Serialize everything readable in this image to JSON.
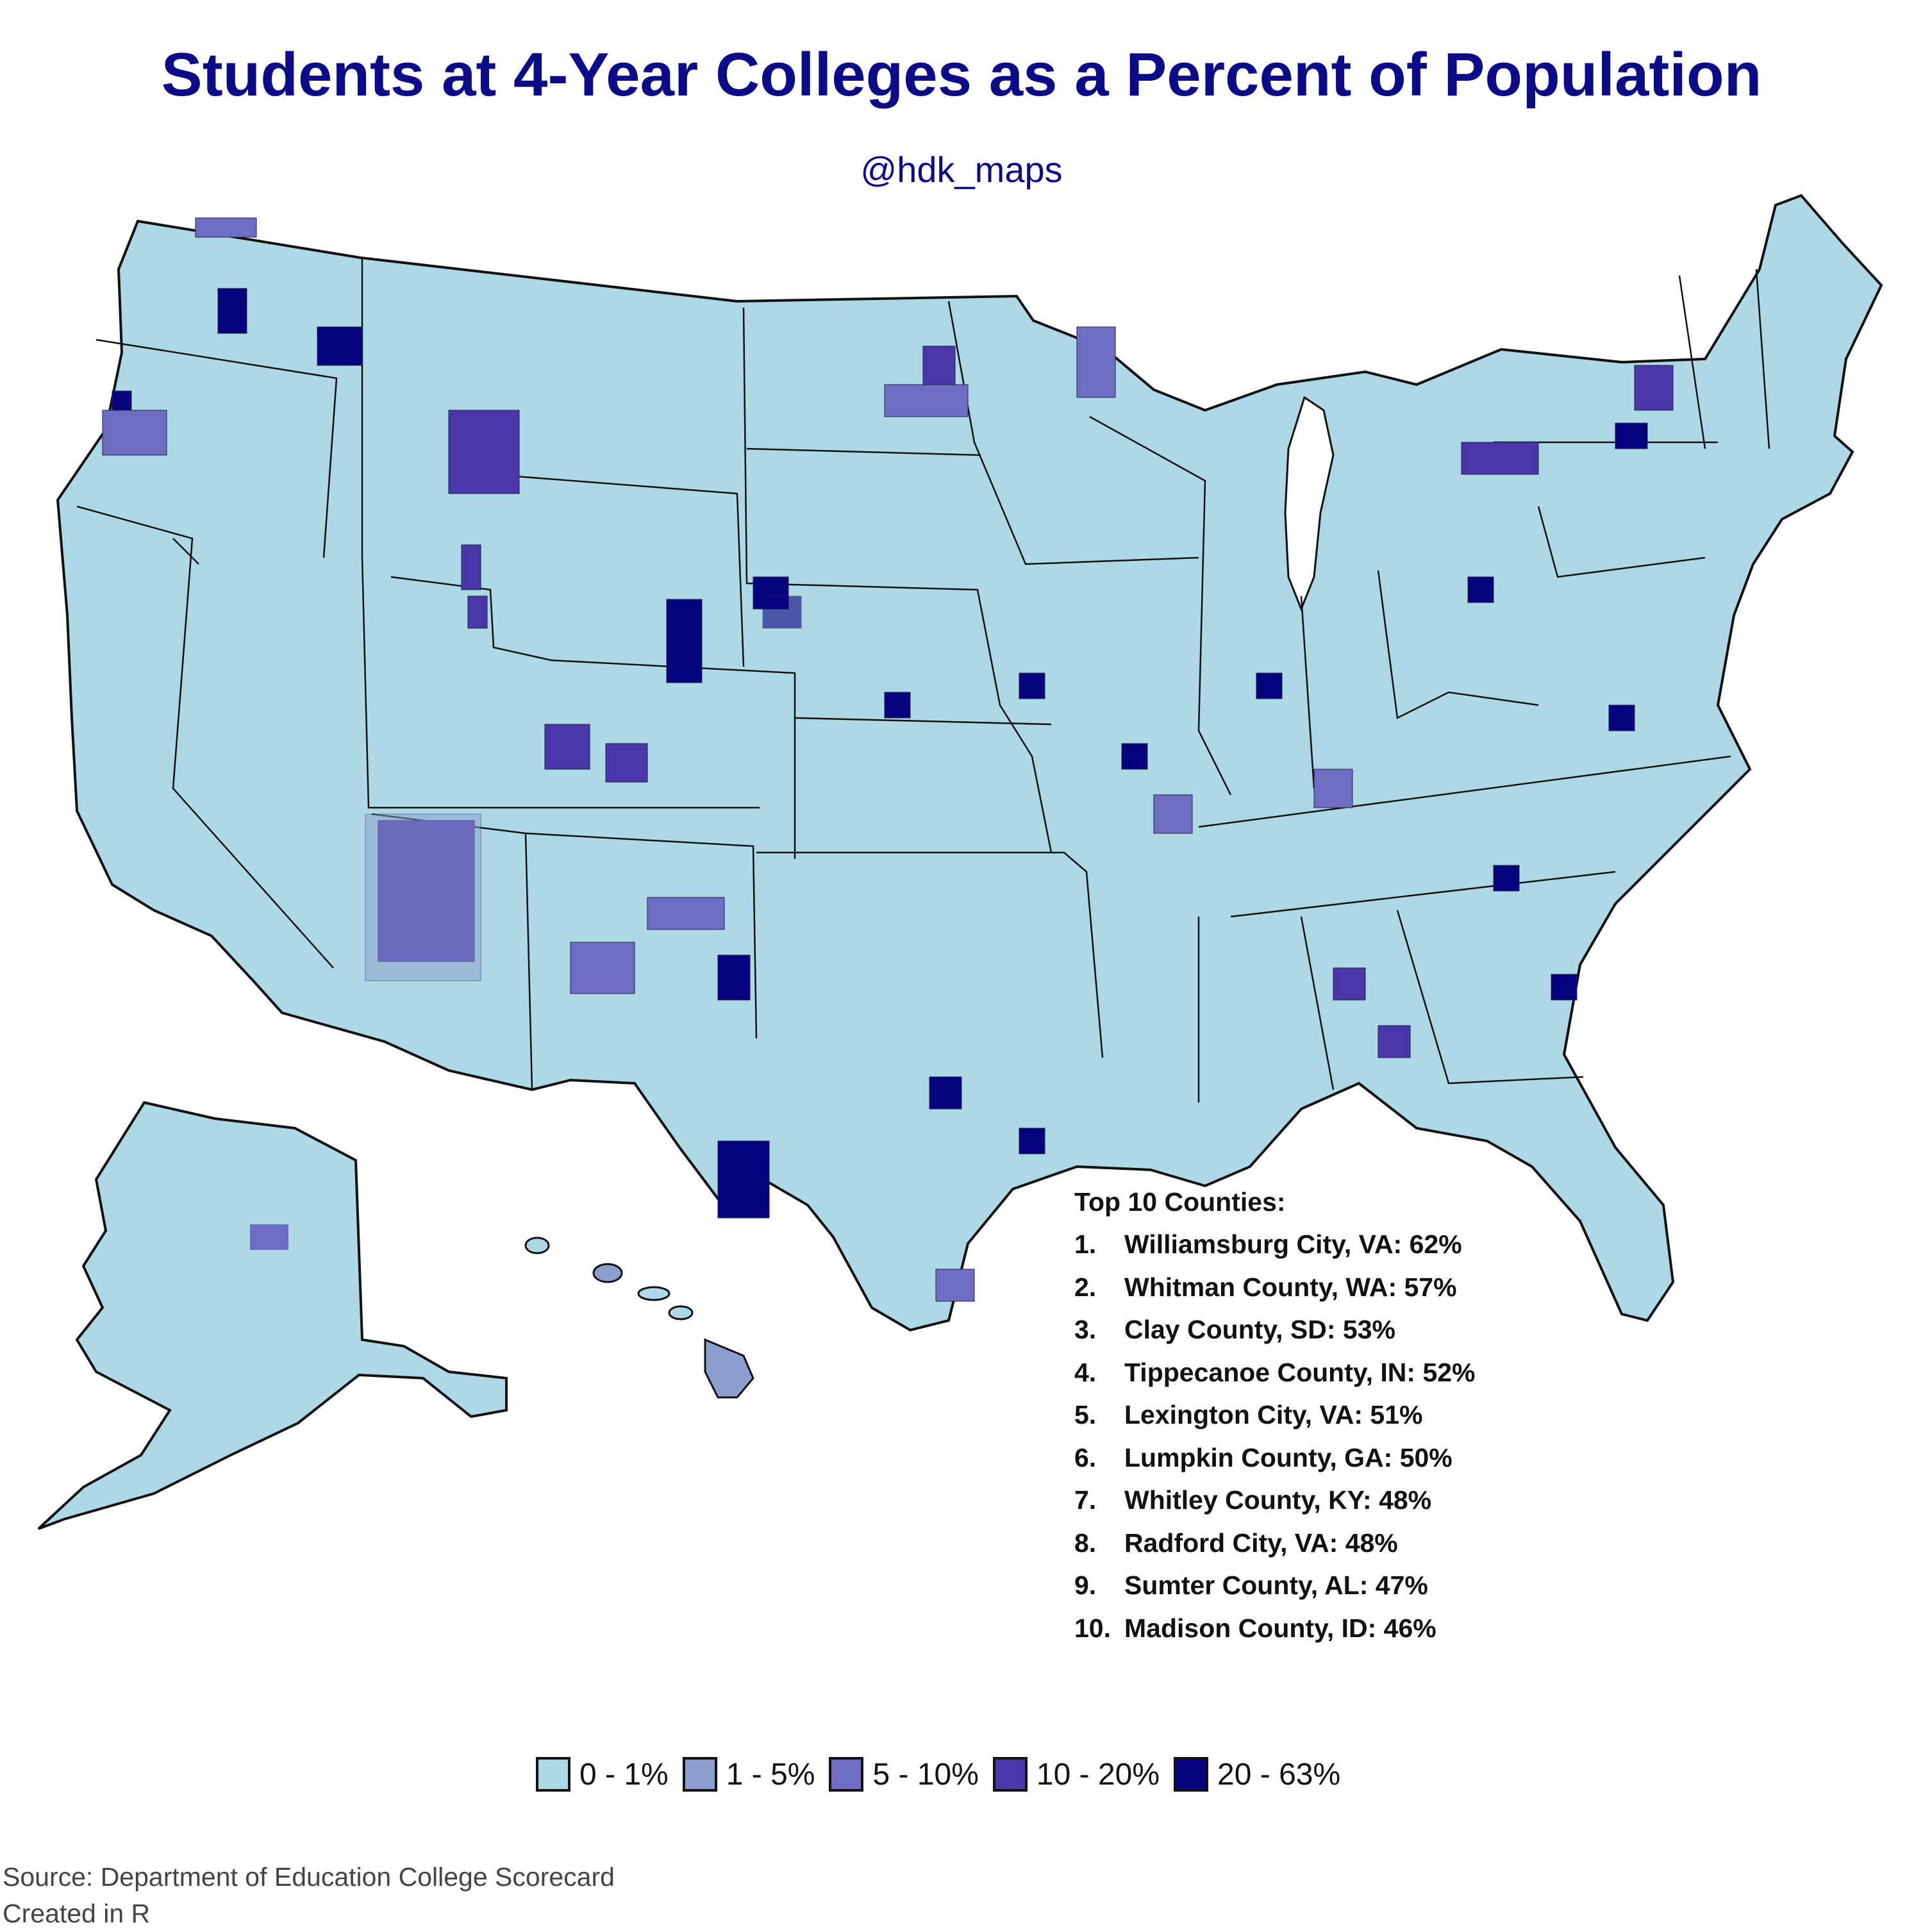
{
  "title": "Students at 4-Year Colleges as a Percent of Population",
  "subtitle": "@hdk_maps",
  "colors": {
    "title": "#0b0a87",
    "water": "#ffffff",
    "border": "#111111",
    "bin_0_1": "#add8e6",
    "bin_1_5": "#8c9ed0",
    "bin_5_10": "#6f6cc3",
    "bin_10_20": "#4b37a8",
    "bin_20_63": "#06027e"
  },
  "top10": {
    "heading": "Top 10 Counties:",
    "items": [
      {
        "rank": "1.",
        "text": "Williamsburg City, VA: 62%"
      },
      {
        "rank": "2.",
        "text": "Whitman County, WA: 57%"
      },
      {
        "rank": "3.",
        "text": "Clay County, SD: 53%"
      },
      {
        "rank": "4.",
        "text": "Tippecanoe County, IN: 52%"
      },
      {
        "rank": "5.",
        "text": "Lexington City, VA: 51%"
      },
      {
        "rank": "6.",
        "text": "Lumpkin County, GA: 50%"
      },
      {
        "rank": "7.",
        "text": "Whitley County, KY: 48%"
      },
      {
        "rank": "8.",
        "text": "Radford City, VA: 48%"
      },
      {
        "rank": "9.",
        "text": "Sumter County, AL: 47%"
      },
      {
        "rank": "10.",
        "text": "Madison County, ID: 46%"
      }
    ]
  },
  "legend": [
    {
      "label": "0 - 1%",
      "color": "#add8e6"
    },
    {
      "label": "1 - 5%",
      "color": "#8c9ed0"
    },
    {
      "label": "5 - 10%",
      "color": "#6f6cc3"
    },
    {
      "label": "10 - 20%",
      "color": "#4b37a8"
    },
    {
      "label": "20 - 63%",
      "color": "#06027e"
    }
  ],
  "source": {
    "line1": "Source: Department of Education College Scorecard",
    "line2": "Created in R"
  }
}
